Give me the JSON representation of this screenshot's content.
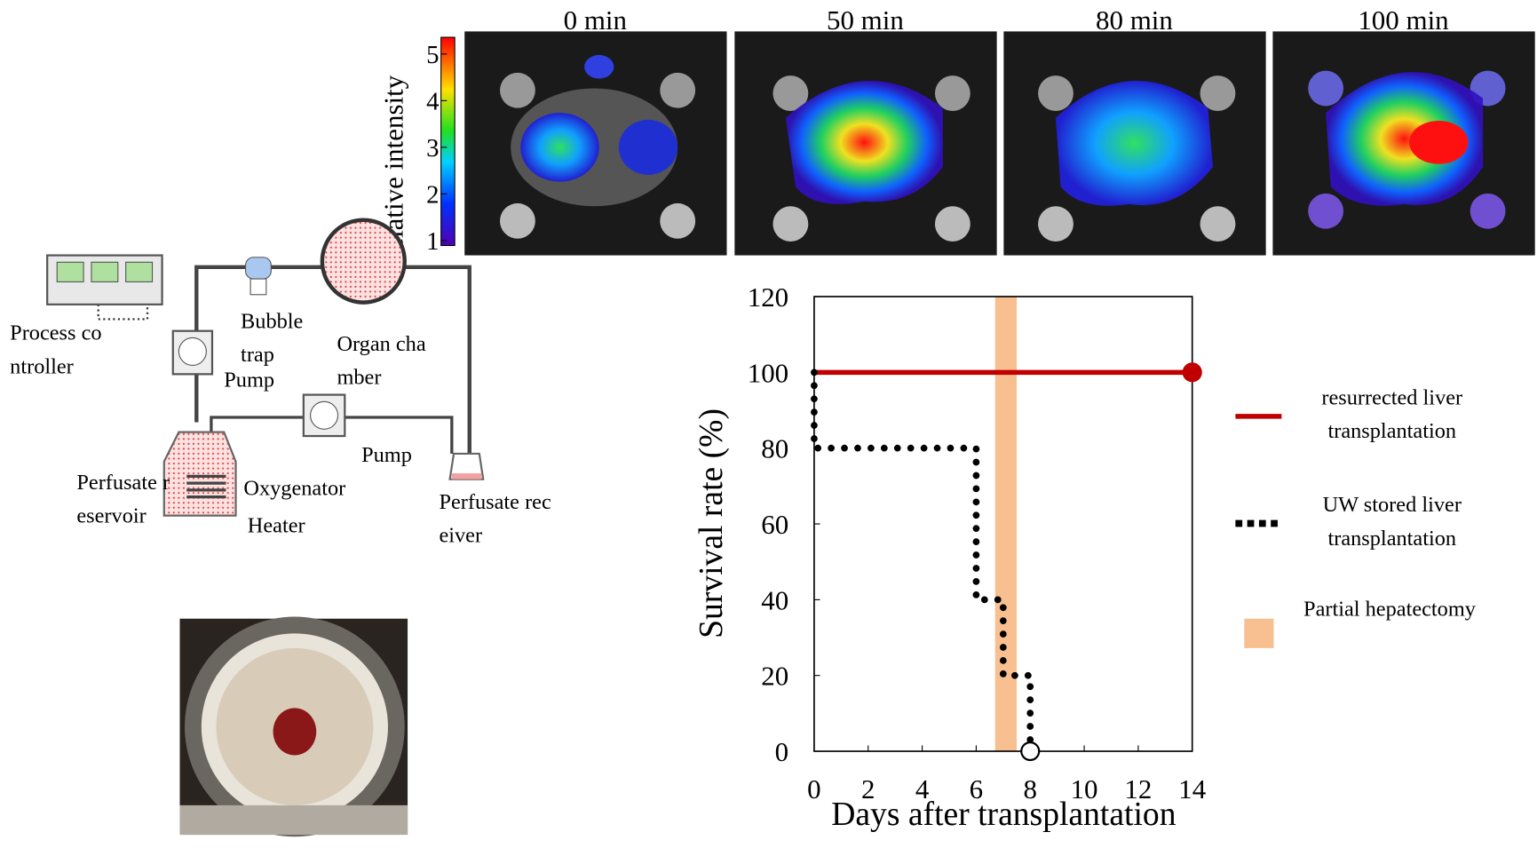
{
  "chart_data": {
    "type": "line",
    "xlabel": "Days after transplantation",
    "ylabel": "Survival rate (%)",
    "xlim": [
      0,
      14
    ],
    "xticks": [
      0,
      2,
      4,
      6,
      8,
      10,
      12,
      14
    ],
    "ylim": [
      0,
      120
    ],
    "yticks": [
      0,
      20,
      40,
      60,
      80,
      100,
      120
    ],
    "series": [
      {
        "name": "resurrected liver transplantation",
        "color": "#c00000",
        "style": "solid",
        "x": [
          0,
          14
        ],
        "values": [
          100,
          100
        ]
      },
      {
        "name": "UW stored  liver transplantation",
        "color": "#000000",
        "style": "dotted",
        "x": [
          0,
          0,
          6,
          6,
          7,
          7,
          8,
          8
        ],
        "values": [
          100,
          80,
          80,
          40,
          40,
          20,
          20,
          0
        ]
      }
    ],
    "band": {
      "name": "Partial hepatectomy",
      "color": "#f8c090",
      "x": [
        6.7,
        7.5
      ]
    }
  },
  "colorbar": {
    "label": "Relative intensity",
    "lim": [
      1,
      5
    ],
    "ticks": [
      1,
      2,
      3,
      4,
      5
    ]
  },
  "images": {
    "labels": [
      "0 min",
      "50 min",
      "80 min",
      "100 min"
    ]
  },
  "diagram": {
    "process_controller": "Process controller",
    "bubble_trap": "Bubble trap",
    "organ_chamber": "Organ chamber",
    "pump_1": "Pump",
    "pump_2": "Pump",
    "oxygenator": "Oxygenator",
    "heater": "Heater",
    "reservoir": "Perfusate reservoir",
    "receiver": "Perfusate receiver"
  }
}
